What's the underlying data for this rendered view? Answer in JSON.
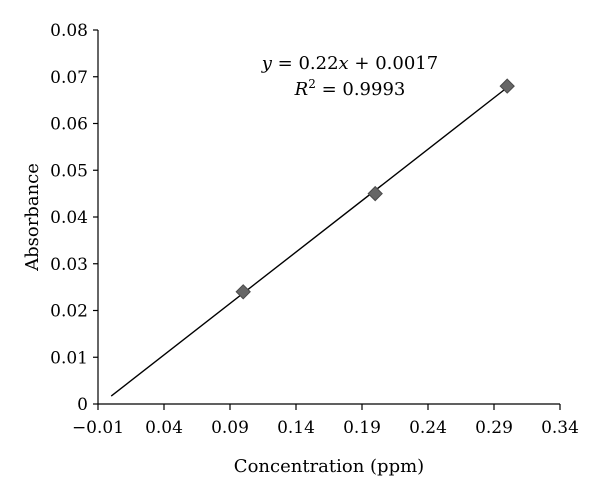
{
  "chart_data": {
    "type": "scatter",
    "xlabel": "Concentration (ppm)",
    "ylabel": "Absorbance",
    "xlim": [
      -0.01,
      0.34
    ],
    "ylim": [
      0,
      0.08
    ],
    "x_ticks": [
      "−0.01",
      "0.04",
      "0.09",
      "0.14",
      "0.19",
      "0.24",
      "0.29",
      "0.34"
    ],
    "y_ticks": [
      "0",
      "0.01",
      "0.02",
      "0.03",
      "0.04",
      "0.05",
      "0.06",
      "0.07",
      "0.08"
    ],
    "grid": false,
    "marker": "diamond",
    "marker_color": "#666666",
    "series": [
      {
        "points": [
          {
            "x": 0.1,
            "y": 0.024
          },
          {
            "x": 0.2,
            "y": 0.045
          },
          {
            "x": 0.3,
            "y": 0.068
          }
        ]
      }
    ],
    "trendline": {
      "type": "linear",
      "slope": 0.22,
      "intercept": 0.0017,
      "equation_parts": {
        "y": "y",
        "mid": " = 0.22",
        "x": "x",
        "rest": " + 0.0017"
      },
      "r2_parts": {
        "R": "R",
        "sup": "2",
        "rest": " = 0.9993"
      }
    }
  }
}
